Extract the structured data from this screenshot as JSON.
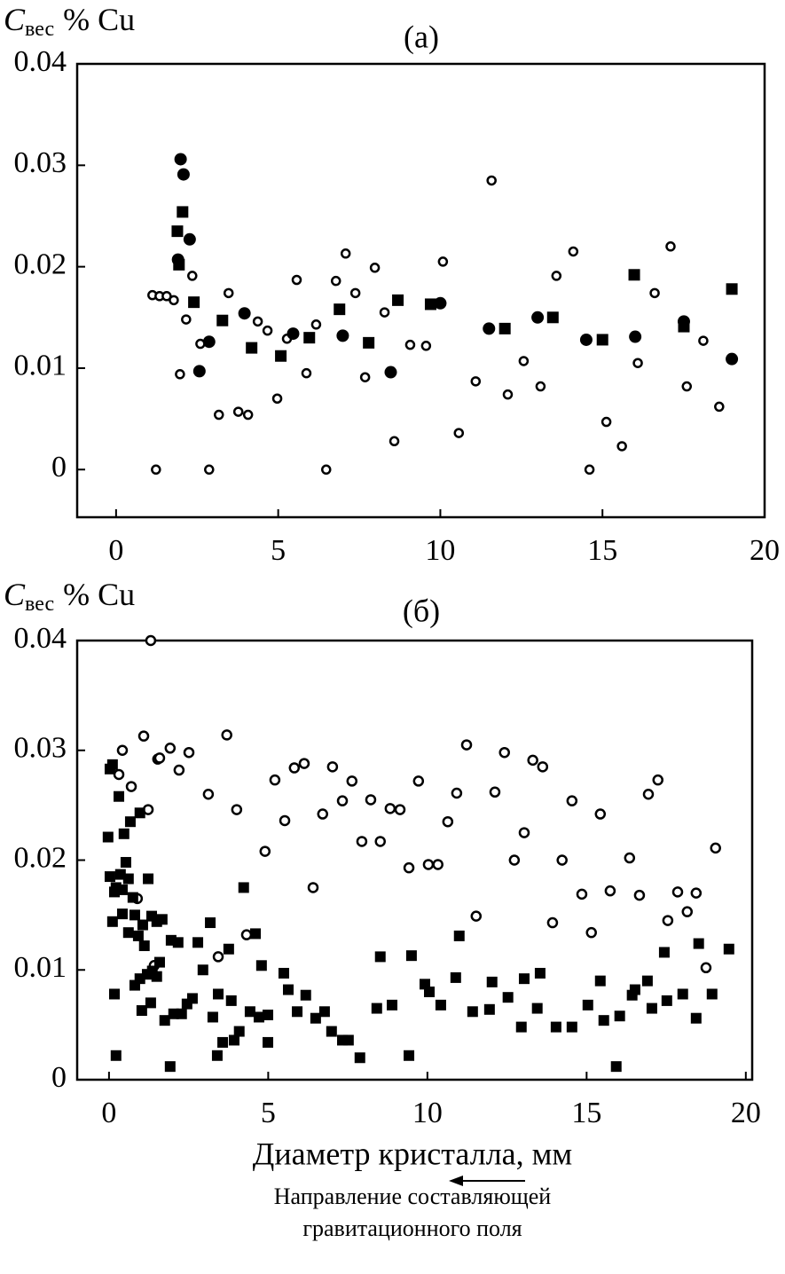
{
  "chart_data": [
    {
      "type": "scatter",
      "title": "(а)",
      "ylabel": {
        "main": "C",
        "sub": "вес",
        "unit": "% Cu"
      },
      "xlim": [
        -1.2,
        20
      ],
      "ylim": [
        -0.0047,
        0.04
      ],
      "xticks": [
        0,
        5,
        10,
        15,
        20
      ],
      "yticks": [
        0,
        0.01,
        0.02,
        0.03,
        0.04
      ],
      "series": [
        {
          "marker": "open-circle",
          "color": "#000000",
          "x": [
            1.23,
            1.12,
            1.34,
            1.56,
            1.78,
            1.97,
            2.16,
            2.35,
            2.6,
            2.87,
            3.17,
            3.47,
            3.77,
            4.07,
            4.37,
            4.67,
            4.97,
            5.27,
            5.57,
            5.87,
            6.17,
            6.48,
            6.78,
            7.08,
            7.38,
            7.68,
            7.98,
            8.28,
            8.58,
            9.07,
            9.56,
            10.08,
            10.57,
            11.09,
            11.58,
            12.08,
            12.57,
            13.09,
            13.58,
            14.1,
            14.6,
            15.12,
            15.6,
            16.09,
            16.61,
            17.1,
            17.6,
            18.11,
            18.6
          ],
          "values": [
            0,
            0.0172,
            0.0171,
            0.0171,
            0.0167,
            0.0094,
            0.0148,
            0.0191,
            0.0124,
            0,
            0.0054,
            0.0174,
            0.0057,
            0.0054,
            0.0146,
            0.0137,
            0.007,
            0.0129,
            0.0187,
            0.0095,
            0.0143,
            0,
            0.0186,
            0.0213,
            0.0174,
            0.0091,
            0.0199,
            0.0155,
            0.0028,
            0.0123,
            0.0122,
            0.0205,
            0.0036,
            0.0087,
            0.0285,
            0.0074,
            0.0107,
            0.0082,
            0.0191,
            0.0215,
            0,
            0.0047,
            0.0023,
            0.0105,
            0.0174,
            0.022,
            0.0082,
            0.0127,
            0.0062
          ]
        },
        {
          "marker": "filled-circle",
          "color": "#000000",
          "x": [
            1.99,
            2.08,
            2.27,
            1.91,
            2.57,
            2.87,
            3.96,
            5.46,
            6.99,
            8.47,
            10,
            11.5,
            13.0,
            14.5,
            16.01,
            17.51,
            18.99
          ],
          "values": [
            0.0306,
            0.0291,
            0.0227,
            0.0207,
            0.0097,
            0.0126,
            0.0154,
            0.0134,
            0.0132,
            0.0096,
            0.0164,
            0.0139,
            0.015,
            0.0128,
            0.0131,
            0.0146,
            0.0109
          ]
        },
        {
          "marker": "filled-square",
          "color": "#000000",
          "x": [
            1.89,
            2.05,
            1.94,
            2.4,
            3.28,
            4.18,
            5.08,
            5.96,
            6.89,
            7.79,
            8.69,
            9.7,
            11.99,
            13.47,
            15.0,
            15.98,
            17.51,
            18.99
          ],
          "values": [
            0.0235,
            0.0254,
            0.0202,
            0.0165,
            0.0147,
            0.012,
            0.0112,
            0.013,
            0.0158,
            0.0125,
            0.0167,
            0.0163,
            0.0139,
            0.015,
            0.0128,
            0.0192,
            0.0141,
            0.0178
          ]
        }
      ]
    },
    {
      "type": "scatter",
      "title": "(б)",
      "ylabel": {
        "main": "C",
        "sub": "вес",
        "unit": "% Cu"
      },
      "xlabel": "Диаметр кристалла, мм",
      "xlim": [
        -1.0,
        20.2
      ],
      "ylim": [
        0,
        0.04
      ],
      "xticks": [
        0,
        5,
        10,
        15,
        20
      ],
      "yticks": [
        0,
        0.01,
        0.02,
        0.03,
        0.04
      ],
      "series": [
        {
          "marker": "open-circle",
          "color": "#000000",
          "x": [
            1.31,
            0.42,
            0.31,
            0.7,
            1.09,
            1.23,
            1.53,
            1.59,
            1.92,
            2.2,
            2.51,
            0.89,
            1.42,
            3.12,
            3.7,
            4.01,
            4.32,
            3.43,
            4.9,
            5.21,
            5.52,
            5.82,
            6.13,
            6.41,
            6.71,
            7.02,
            7.33,
            7.63,
            7.94,
            8.22,
            8.52,
            8.83,
            9.14,
            9.42,
            9.72,
            10.03,
            10.33,
            10.64,
            10.92,
            11.23,
            11.53,
            12.12,
            12.42,
            12.73,
            13.04,
            13.31,
            13.62,
            13.93,
            14.23,
            14.54,
            14.85,
            15.15,
            15.43,
            15.74,
            16.35,
            16.66,
            16.94,
            17.24,
            17.55,
            17.86,
            18.16,
            18.44,
            18.75,
            19.05
          ],
          "values": [
            0.04,
            0.03,
            0.0278,
            0.0267,
            0.0313,
            0.0246,
            0.0292,
            0.0293,
            0.0302,
            0.0282,
            0.0298,
            0.0165,
            0.0104,
            0.026,
            0.0314,
            0.0246,
            0.0132,
            0.0112,
            0.0208,
            0.0273,
            0.0236,
            0.0284,
            0.0288,
            0.0175,
            0.0242,
            0.0285,
            0.0254,
            0.0272,
            0.0217,
            0.0255,
            0.0217,
            0.0247,
            0.0246,
            0.0193,
            0.0272,
            0.0196,
            0.0196,
            0.0235,
            0.0261,
            0.0305,
            0.0149,
            0.0262,
            0.0298,
            0.02,
            0.0225,
            0.0291,
            0.0285,
            0.0143,
            0.02,
            0.0254,
            0.0169,
            0.0134,
            0.0242,
            0.0172,
            0.0202,
            0.0168,
            0.026,
            0.0273,
            0.0145,
            0.0171,
            0.0153,
            0.017,
            0.0102,
            0.0211
          ]
        },
        {
          "marker": "filled-square",
          "color": "#000000",
          "x": [
            0.03,
            0.11,
            -0.03,
            0.31,
            0.47,
            0.67,
            0.97,
            0.03,
            0.22,
            0.36,
            0.53,
            0.17,
            0.42,
            0.61,
            0.75,
            0.11,
            0.42,
            0.61,
            0.81,
            1.06,
            1.23,
            1.34,
            1.5,
            1.67,
            0.92,
            1.11,
            0.81,
            0.97,
            1.2,
            1.36,
            1.5,
            1.59,
            1.03,
            1.31,
            1.75,
            1.95,
            2.17,
            2.03,
            2.28,
            2.45,
            2.62,
            1.92,
            0.22,
            0.17,
            2.79,
            2.95,
            3.18,
            3.26,
            3.4,
            3.57,
            3.43,
            3.76,
            3.84,
            3.93,
            4.09,
            4.23,
            4.43,
            4.6,
            4.71,
            4.79,
            4.99,
            4.99,
            5.49,
            5.63,
            5.91,
            6.18,
            6.49,
            6.77,
            6.99,
            7.33,
            7.52,
            7.88,
            8.41,
            8.52,
            8.89,
            9.42,
            9.5,
            9.92,
            10.06,
            10.42,
            10.89,
            11.0,
            11.42,
            11.95,
            12.03,
            12.53,
            12.95,
            13.04,
            13.45,
            13.54,
            14.04,
            14.54,
            15.04,
            15.43,
            15.54,
            15.93,
            16.04,
            16.43,
            16.52,
            16.91,
            17.05,
            17.44,
            17.52,
            18.02,
            18.44,
            18.52,
            18.94,
            19.47
          ],
          "values": [
            0.0283,
            0.0287,
            0.0221,
            0.0258,
            0.0224,
            0.0235,
            0.0243,
            0.0185,
            0.0175,
            0.0187,
            0.0198,
            0.0171,
            0.0173,
            0.0183,
            0.0166,
            0.0144,
            0.0151,
            0.0134,
            0.015,
            0.0141,
            0.0183,
            0.0149,
            0.0144,
            0.0146,
            0.0131,
            0.0122,
            0.0086,
            0.0092,
            0.0096,
            0.0099,
            0.0094,
            0.0107,
            0.0063,
            0.007,
            0.0054,
            0.0127,
            0.0125,
            0.006,
            0.006,
            0.0069,
            0.0074,
            0.0012,
            0.0022,
            0.0078,
            0.0125,
            0.01,
            0.0143,
            0.0057,
            0.0022,
            0.0034,
            0.0078,
            0.0119,
            0.0072,
            0.0036,
            0.0044,
            0.0175,
            0.0062,
            0.0133,
            0.0057,
            0.0104,
            0.0059,
            0.0034,
            0.0097,
            0.0082,
            0.0062,
            0.0077,
            0.0056,
            0.0062,
            0.0044,
            0.0036,
            0.0036,
            0.002,
            0.0065,
            0.0112,
            0.0068,
            0.0022,
            0.0113,
            0.0087,
            0.008,
            0.0068,
            0.0093,
            0.0131,
            0.0062,
            0.0064,
            0.0089,
            0.0075,
            0.0048,
            0.0092,
            0.0065,
            0.0097,
            0.0048,
            0.0048,
            0.0068,
            0.009,
            0.0054,
            0.0012,
            0.0058,
            0.0077,
            0.0082,
            0.009,
            0.0065,
            0.0116,
            0.0072,
            0.0078,
            0.0056,
            0.0124,
            0.0078,
            0.0119
          ]
        }
      ]
    }
  ],
  "annotation": {
    "lines": [
      "Направление составляющей",
      "гравитационного поля"
    ]
  }
}
